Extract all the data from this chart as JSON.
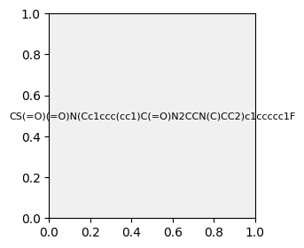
{
  "smiles": "CS(=O)(=O)N(Cc1ccc(cc1)C(=O)N2CCN(C)CC2)c1ccccc1F",
  "image_size": 300,
  "background_color": "#f0f0f0",
  "bond_color": "#000000",
  "atom_colors": {
    "N": "#0000ff",
    "O": "#ff0000",
    "F": "#ff00ff",
    "S": "#cccc00",
    "C": "#000000"
  },
  "title": ""
}
